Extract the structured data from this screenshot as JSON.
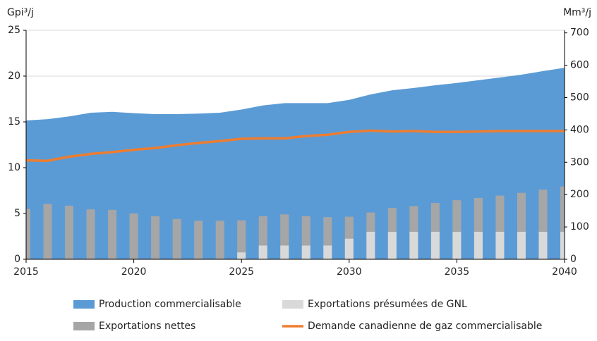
{
  "chart_data": {
    "type": "combo",
    "y_label": "Gpi³/j",
    "y2_label": "Mm³/j",
    "x": [
      2015,
      2016,
      2017,
      2018,
      2019,
      2020,
      2021,
      2022,
      2023,
      2024,
      2025,
      2026,
      2027,
      2028,
      2029,
      2030,
      2031,
      2032,
      2033,
      2034,
      2035,
      2036,
      2037,
      2038,
      2039,
      2040
    ],
    "xlim": [
      2015,
      2040
    ],
    "xticks": [
      2015,
      2020,
      2025,
      2030,
      2035,
      2040
    ],
    "ylim": [
      0,
      25
    ],
    "yticks": [
      0,
      5,
      10,
      15,
      20,
      25
    ],
    "y2lim": [
      0,
      708
    ],
    "y2ticks": [
      0,
      100,
      200,
      300,
      400,
      500,
      600,
      700
    ],
    "grid": true,
    "series": [
      {
        "name": "Production commercialisable",
        "kind": "area",
        "color": "#5b9bd5",
        "values": [
          15.15,
          15.3,
          15.6,
          16.0,
          16.1,
          15.95,
          15.85,
          15.85,
          15.9,
          16.0,
          16.35,
          16.8,
          17.05,
          17.05,
          17.05,
          17.4,
          18.0,
          18.45,
          18.7,
          19.0,
          19.25,
          19.55,
          19.85,
          20.15,
          20.55,
          20.9
        ]
      },
      {
        "name": "Exportations présumées de GNL",
        "kind": "bar",
        "color": "#d9d9d9",
        "values": [
          0,
          0,
          0,
          0,
          0,
          0,
          0,
          0,
          0,
          0,
          0.75,
          1.5,
          1.5,
          1.5,
          1.5,
          2.25,
          3.0,
          3.0,
          3.0,
          3.0,
          3.0,
          3.0,
          3.0,
          3.0,
          3.0,
          3.0
        ]
      },
      {
        "name": "Exportations nettes",
        "kind": "bar",
        "color": "#a6a6a6",
        "values": [
          5.5,
          6.05,
          5.85,
          5.45,
          5.4,
          5.0,
          4.7,
          4.4,
          4.2,
          4.2,
          4.25,
          4.7,
          4.9,
          4.7,
          4.6,
          4.65,
          5.1,
          5.6,
          5.8,
          6.15,
          6.45,
          6.7,
          6.95,
          7.25,
          7.6,
          7.95
        ]
      },
      {
        "name": "Demande canadienne de gaz commercialisable",
        "kind": "line",
        "color": "#ed7d31",
        "values": [
          10.8,
          10.75,
          11.2,
          11.5,
          11.7,
          11.95,
          12.15,
          12.45,
          12.7,
          12.9,
          13.15,
          13.2,
          13.2,
          13.45,
          13.6,
          13.9,
          14.05,
          13.95,
          14.0,
          13.9,
          13.9,
          13.95,
          14.0,
          14.0,
          14.0,
          14.0
        ]
      }
    ]
  }
}
